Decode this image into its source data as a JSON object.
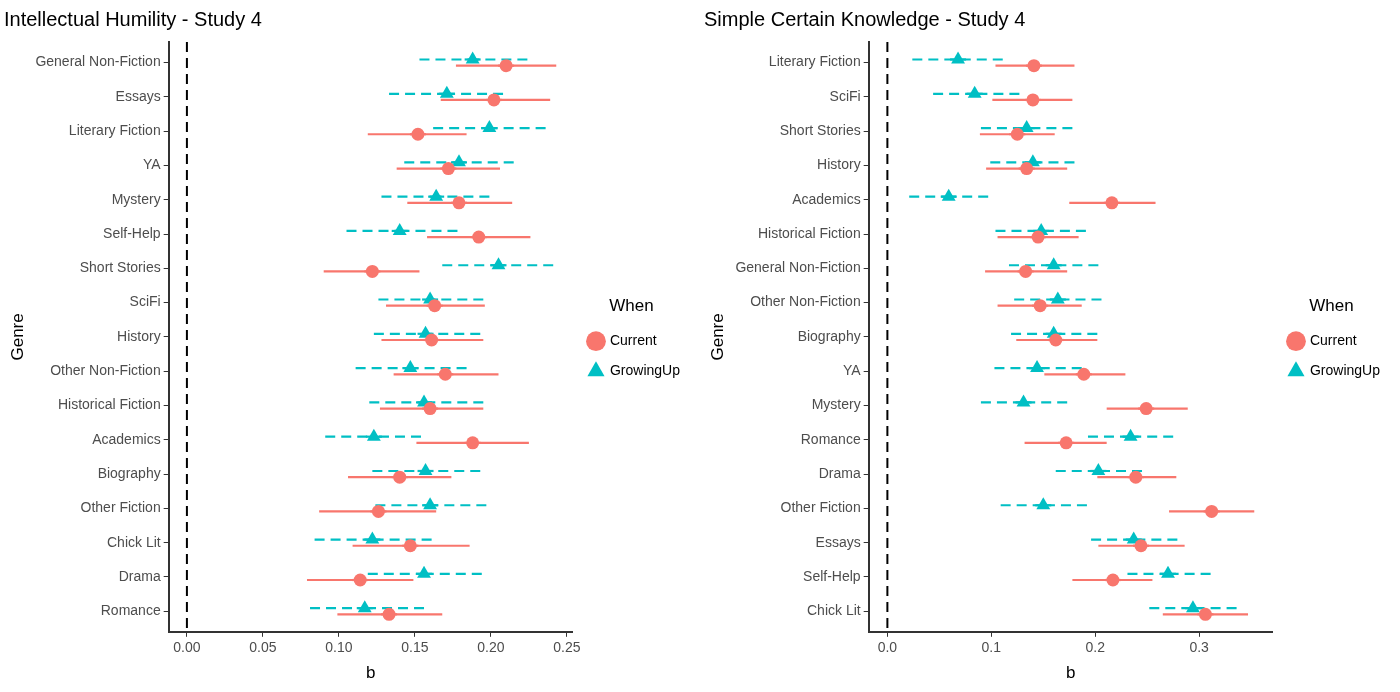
{
  "chart_data": [
    {
      "type": "scatter",
      "orientation": "horizontal",
      "title": "Intellectual Humility - Study 4",
      "xlabel": "b",
      "ylabel": "Genre",
      "legend_title": "When",
      "legend": "right",
      "grid": false,
      "categories": [
        "General Non-Fiction",
        "Essays",
        "Literary Fiction",
        "YA",
        "Mystery",
        "Self-Help",
        "Short Stories",
        "SciFi",
        "History",
        "Other Non-Fiction",
        "Historical Fiction",
        "Academics",
        "Biography",
        "Other Fiction",
        "Chick Lit",
        "Drama",
        "Romance"
      ],
      "xlim": [
        -0.012,
        0.254
      ],
      "xticks": [
        {
          "value": 0,
          "label": "0.00"
        },
        {
          "value": 0.05,
          "label": "0.05"
        },
        {
          "value": 0.1,
          "label": "0.10"
        },
        {
          "value": 0.15,
          "label": "0.15"
        },
        {
          "value": 0.2,
          "label": "0.20"
        },
        {
          "value": 0.25,
          "label": "0.25"
        }
      ],
      "ref_lines": [
        {
          "axis": "x",
          "value": 0,
          "color": "#000000",
          "line_style": "dashed"
        }
      ],
      "series": [
        {
          "name": "Current",
          "color": "#f8766d",
          "marker": "circle",
          "line_style": "solid",
          "values": [
            0.21,
            0.202,
            0.152,
            0.172,
            0.179,
            0.192,
            0.122,
            0.163,
            0.161,
            0.17,
            0.16,
            0.188,
            0.14,
            0.126,
            0.147,
            0.114,
            0.133
          ],
          "errors": [
            [
              0.177,
              0.243
            ],
            [
              0.167,
              0.239
            ],
            [
              0.119,
              0.184
            ],
            [
              0.138,
              0.206
            ],
            [
              0.145,
              0.214
            ],
            [
              0.158,
              0.226
            ],
            [
              0.09,
              0.153
            ],
            [
              0.131,
              0.196
            ],
            [
              0.128,
              0.195
            ],
            [
              0.136,
              0.205
            ],
            [
              0.127,
              0.195
            ],
            [
              0.151,
              0.225
            ],
            [
              0.106,
              0.174
            ],
            [
              0.087,
              0.164
            ],
            [
              0.109,
              0.186
            ],
            [
              0.079,
              0.149
            ],
            [
              0.099,
              0.168
            ]
          ]
        },
        {
          "name": "GrowingUp",
          "color": "#00bfc4",
          "marker": "triangle",
          "line_style": "dashed",
          "values": [
            0.188,
            0.171,
            0.199,
            0.179,
            0.164,
            0.14,
            0.205,
            0.16,
            0.157,
            0.147,
            0.156,
            0.123,
            0.157,
            0.16,
            0.122,
            0.156,
            0.117
          ],
          "errors": [
            [
              0.153,
              0.224
            ],
            [
              0.133,
              0.208
            ],
            [
              0.162,
              0.236
            ],
            [
              0.143,
              0.215
            ],
            [
              0.128,
              0.199
            ],
            [
              0.105,
              0.178
            ],
            [
              0.168,
              0.241
            ],
            [
              0.126,
              0.195
            ],
            [
              0.123,
              0.193
            ],
            [
              0.111,
              0.184
            ],
            [
              0.12,
              0.195
            ],
            [
              0.091,
              0.154
            ],
            [
              0.122,
              0.193
            ],
            [
              0.124,
              0.197
            ],
            [
              0.084,
              0.161
            ],
            [
              0.119,
              0.194
            ],
            [
              0.081,
              0.156
            ]
          ]
        }
      ]
    },
    {
      "type": "scatter",
      "orientation": "horizontal",
      "title": "Simple Certain Knowledge - Study 4",
      "xlabel": "b",
      "ylabel": "Genre",
      "legend_title": "When",
      "legend": "right",
      "grid": false,
      "categories": [
        "Literary Fiction",
        "SciFi",
        "Short Stories",
        "History",
        "Academics",
        "Historical Fiction",
        "General Non-Fiction",
        "Other Non-Fiction",
        "Biography",
        "YA",
        "Mystery",
        "Romance",
        "Drama",
        "Other Fiction",
        "Essays",
        "Self-Help",
        "Chick Lit"
      ],
      "xlim": [
        -0.018,
        0.371
      ],
      "xticks": [
        {
          "value": 0,
          "label": "0.0"
        },
        0.1,
        0.2,
        0.3
      ],
      "ref_lines": [
        {
          "axis": "x",
          "value": 0,
          "color": "#000000",
          "line_style": "dashed"
        }
      ],
      "series": [
        {
          "name": "Current",
          "color": "#f8766d",
          "marker": "circle",
          "line_style": "solid",
          "values": [
            0.141,
            0.14,
            0.125,
            0.134,
            0.216,
            0.145,
            0.133,
            0.147,
            0.162,
            0.189,
            0.249,
            0.172,
            0.239,
            0.312,
            0.244,
            0.217,
            0.306
          ],
          "errors": [
            [
              0.104,
              0.18
            ],
            [
              0.101,
              0.178
            ],
            [
              0.089,
              0.161
            ],
            [
              0.095,
              0.173
            ],
            [
              0.175,
              0.258
            ],
            [
              0.106,
              0.184
            ],
            [
              0.094,
              0.173
            ],
            [
              0.106,
              0.187
            ],
            [
              0.124,
              0.202
            ],
            [
              0.151,
              0.229
            ],
            [
              0.211,
              0.289
            ],
            [
              0.132,
              0.211
            ],
            [
              0.202,
              0.278
            ],
            [
              0.271,
              0.353
            ],
            [
              0.203,
              0.286
            ],
            [
              0.178,
              0.255
            ],
            [
              0.265,
              0.347
            ]
          ]
        },
        {
          "name": "GrowingUp",
          "color": "#00bfc4",
          "marker": "triangle",
          "line_style": "dashed",
          "values": [
            0.068,
            0.084,
            0.134,
            0.14,
            0.059,
            0.148,
            0.16,
            0.164,
            0.16,
            0.144,
            0.131,
            0.234,
            0.203,
            0.15,
            0.237,
            0.27,
            0.294
          ],
          "errors": [
            [
              0.024,
              0.111
            ],
            [
              0.044,
              0.127
            ],
            [
              0.09,
              0.178
            ],
            [
              0.099,
              0.18
            ],
            [
              0.021,
              0.097
            ],
            [
              0.104,
              0.191
            ],
            [
              0.117,
              0.203
            ],
            [
              0.122,
              0.206
            ],
            [
              0.119,
              0.202
            ],
            [
              0.103,
              0.187
            ],
            [
              0.09,
              0.173
            ],
            [
              0.193,
              0.275
            ],
            [
              0.162,
              0.245
            ],
            [
              0.109,
              0.192
            ],
            [
              0.196,
              0.279
            ],
            [
              0.231,
              0.311
            ],
            [
              0.252,
              0.336
            ]
          ]
        }
      ]
    }
  ]
}
